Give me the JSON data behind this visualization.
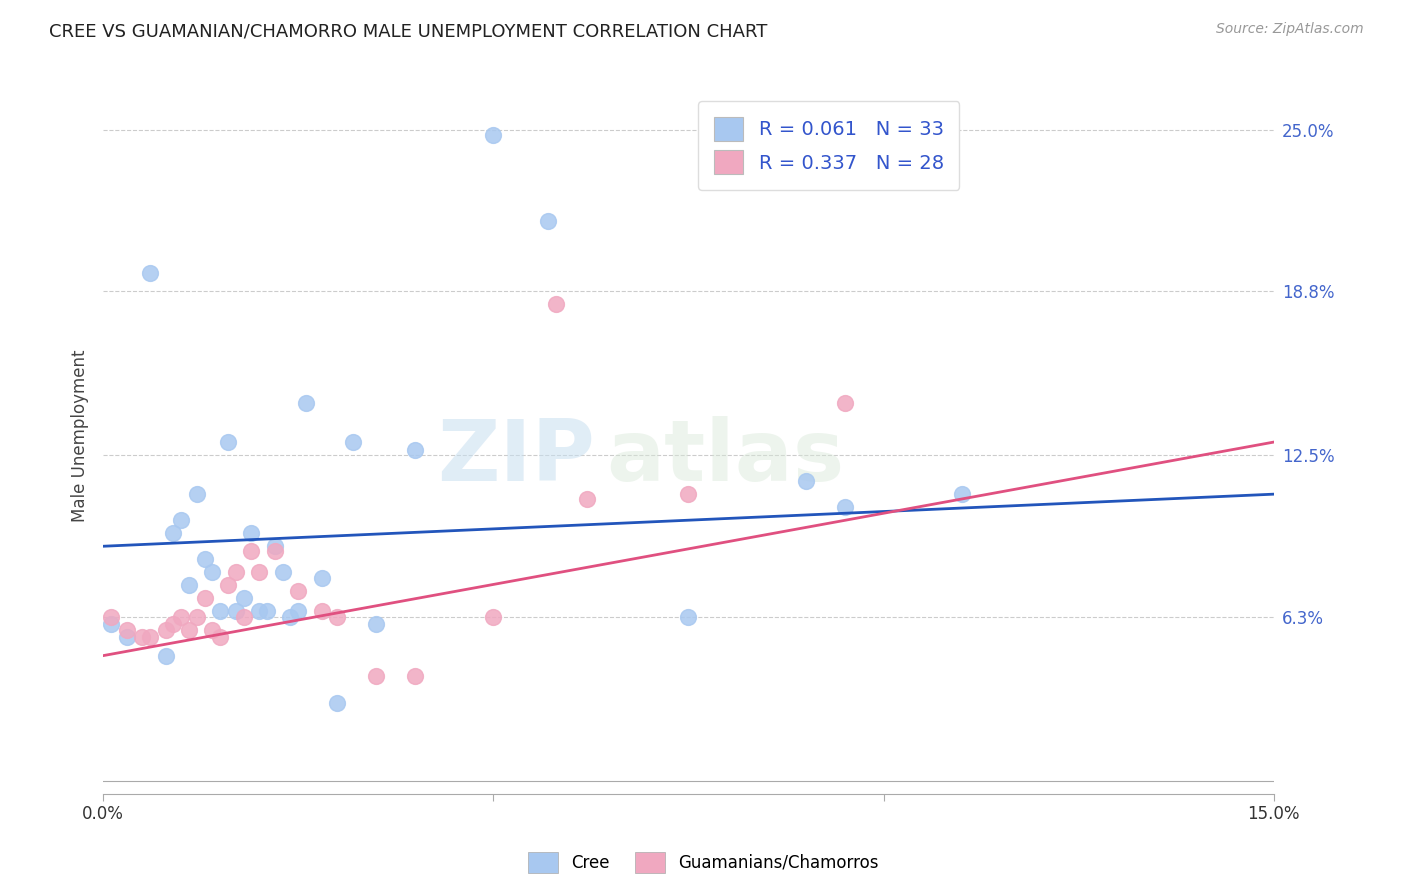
{
  "title": "CREE VS GUAMANIAN/CHAMORRO MALE UNEMPLOYMENT CORRELATION CHART",
  "source": "Source: ZipAtlas.com",
  "ylabel": "Male Unemployment",
  "xlim": [
    0.0,
    0.15
  ],
  "ylim": [
    -0.005,
    0.27
  ],
  "xticks": [
    0.0,
    0.05,
    0.1,
    0.15
  ],
  "xticklabels": [
    "0.0%",
    "",
    "",
    "15.0%"
  ],
  "ytick_labels_right": [
    "6.3%",
    "12.5%",
    "18.8%",
    "25.0%"
  ],
  "ytick_vals_right": [
    0.063,
    0.125,
    0.188,
    0.25
  ],
  "watermark_zip": "ZIP",
  "watermark_atlas": "atlas",
  "legend_R1": "R = 0.061",
  "legend_N1": "N = 33",
  "legend_R2": "R = 0.337",
  "legend_N2": "N = 28",
  "cree_color": "#a8c8f0",
  "guam_color": "#f0a8c0",
  "cree_line_color": "#2255bb",
  "guam_line_color": "#e05080",
  "background_color": "#ffffff",
  "grid_color": "#cccccc",
  "cree_line_y0": 0.09,
  "cree_line_y1": 0.11,
  "guam_line_y0": 0.048,
  "guam_line_y1": 0.13,
  "cree_x": [
    0.001,
    0.003,
    0.006,
    0.008,
    0.009,
    0.01,
    0.011,
    0.012,
    0.013,
    0.014,
    0.015,
    0.016,
    0.017,
    0.018,
    0.019,
    0.02,
    0.021,
    0.022,
    0.023,
    0.024,
    0.025,
    0.026,
    0.028,
    0.03,
    0.032,
    0.035,
    0.04,
    0.05,
    0.057,
    0.075,
    0.09,
    0.095,
    0.11
  ],
  "cree_y": [
    0.06,
    0.055,
    0.195,
    0.048,
    0.095,
    0.1,
    0.075,
    0.11,
    0.085,
    0.08,
    0.065,
    0.13,
    0.065,
    0.07,
    0.095,
    0.065,
    0.065,
    0.09,
    0.08,
    0.063,
    0.065,
    0.145,
    0.078,
    0.03,
    0.13,
    0.06,
    0.127,
    0.248,
    0.215,
    0.063,
    0.115,
    0.105,
    0.11
  ],
  "guam_x": [
    0.001,
    0.003,
    0.005,
    0.006,
    0.008,
    0.009,
    0.01,
    0.011,
    0.012,
    0.013,
    0.014,
    0.015,
    0.016,
    0.017,
    0.018,
    0.019,
    0.02,
    0.022,
    0.025,
    0.028,
    0.03,
    0.035,
    0.04,
    0.05,
    0.058,
    0.062,
    0.075,
    0.095
  ],
  "guam_y": [
    0.063,
    0.058,
    0.055,
    0.055,
    0.058,
    0.06,
    0.063,
    0.058,
    0.063,
    0.07,
    0.058,
    0.055,
    0.075,
    0.08,
    0.063,
    0.088,
    0.08,
    0.088,
    0.073,
    0.065,
    0.063,
    0.04,
    0.04,
    0.063,
    0.183,
    0.108,
    0.11,
    0.145
  ]
}
